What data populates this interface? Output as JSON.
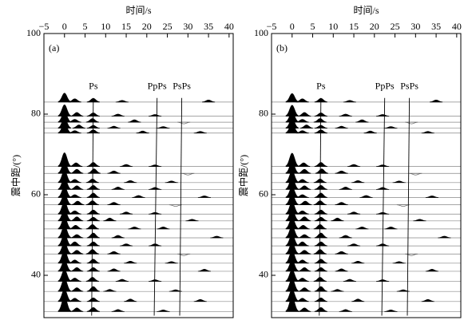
{
  "chart_data": [
    {
      "type": "wiggle",
      "panel_label": "(a)",
      "title": "时间/s",
      "y_label": "震中距/(°)",
      "xlim": [
        -5,
        41
      ],
      "ylim": [
        29.5,
        100
      ],
      "xticks": [
        {
          "value": -5,
          "label": "−5"
        },
        0,
        5,
        10,
        15,
        20,
        25,
        30,
        35,
        40
      ],
      "yticks": [
        40,
        60,
        80,
        100
      ],
      "phases": [
        {
          "label": "Ps",
          "t": [
            7,
            6.6
          ]
        },
        {
          "label": "PpPs",
          "t": [
            22.5,
            21.8
          ]
        },
        {
          "label": "PsPs",
          "t": [
            28.5,
            28
          ]
        }
      ],
      "phase_distance": [
        84,
        30
      ],
      "traces": [
        {
          "distance": 83,
          "t": [
            0,
            2.5,
            7,
            14,
            35
          ],
          "amp": [
            2.2,
            0.8,
            0.9,
            0.4,
            0.5
          ]
        },
        {
          "distance": 79.5,
          "t": [
            0,
            3,
            7,
            13,
            22
          ],
          "amp": [
            2.8,
            0.9,
            0.8,
            0.5,
            0.4
          ]
        },
        {
          "distance": 78,
          "t": [
            0,
            2.5,
            6.8,
            17,
            29
          ],
          "amp": [
            2.6,
            0.7,
            0.9,
            0.6,
            -0.4
          ]
        },
        {
          "distance": 76.5,
          "t": [
            0,
            3.5,
            7,
            12,
            24
          ],
          "amp": [
            2.5,
            0.8,
            0.7,
            0.5,
            0.4
          ]
        },
        {
          "distance": 75.3,
          "t": [
            0,
            2.5,
            7,
            19,
            33
          ],
          "amp": [
            2.4,
            0.6,
            0.8,
            0.5,
            0.4
          ]
        },
        {
          "distance": 67,
          "t": [
            0,
            2.8,
            7,
            15,
            22
          ],
          "amp": [
            3.4,
            0.9,
            1.0,
            0.5,
            0.4
          ]
        },
        {
          "distance": 65.3,
          "t": [
            0,
            3,
            7.2,
            12,
            30
          ],
          "amp": [
            2.8,
            1.0,
            1.1,
            0.6,
            -0.4
          ]
        },
        {
          "distance": 63,
          "t": [
            0,
            2.5,
            6.8,
            16,
            26
          ],
          "amp": [
            3.0,
            0.8,
            0.9,
            0.5,
            0.4
          ]
        },
        {
          "distance": 61.3,
          "t": [
            0,
            3,
            7,
            13,
            22
          ],
          "amp": [
            2.9,
            0.9,
            1.0,
            0.6,
            0.5
          ]
        },
        {
          "distance": 59.3,
          "t": [
            0,
            2.5,
            7,
            18,
            34
          ],
          "amp": [
            2.7,
            0.7,
            1.1,
            0.5,
            0.4
          ]
        },
        {
          "distance": 57.5,
          "t": [
            0,
            3.2,
            6.8,
            12,
            27
          ],
          "amp": [
            2.6,
            0.9,
            1.0,
            0.6,
            -0.4
          ]
        },
        {
          "distance": 55.2,
          "t": [
            0,
            2.5,
            7,
            15,
            22
          ],
          "amp": [
            3.1,
            0.8,
            1.0,
            0.5,
            0.4
          ]
        },
        {
          "distance": 53.5,
          "t": [
            0,
            3,
            7,
            11,
            31
          ],
          "amp": [
            2.8,
            1.0,
            0.9,
            0.7,
            0.4
          ]
        },
        {
          "distance": 51.5,
          "t": [
            0,
            2.7,
            6.8,
            17,
            24
          ],
          "amp": [
            2.9,
            0.9,
            1.1,
            0.5,
            0.5
          ]
        },
        {
          "distance": 49.3,
          "t": [
            0,
            3,
            7,
            13,
            37
          ],
          "amp": [
            3.0,
            0.8,
            1.2,
            0.6,
            0.4
          ]
        },
        {
          "distance": 47.3,
          "t": [
            0,
            2.5,
            7,
            15,
            22
          ],
          "amp": [
            2.9,
            1.0,
            1.0,
            0.5,
            0.5
          ]
        },
        {
          "distance": 45.3,
          "t": [
            0,
            3,
            6.8,
            12,
            29
          ],
          "amp": [
            2.8,
            0.9,
            1.1,
            0.6,
            -0.4
          ]
        },
        {
          "distance": 43,
          "t": [
            0,
            2.5,
            7,
            16,
            26
          ],
          "amp": [
            3.2,
            0.8,
            1.0,
            0.5,
            0.4
          ]
        },
        {
          "distance": 41,
          "t": [
            0,
            3,
            7,
            12,
            34
          ],
          "amp": [
            2.7,
            0.9,
            0.9,
            0.6,
            0.5
          ]
        },
        {
          "distance": 38.5,
          "t": [
            0,
            2.5,
            6.8,
            14,
            22
          ],
          "amp": [
            2.9,
            0.8,
            1.0,
            0.5,
            0.4
          ]
        },
        {
          "distance": 36,
          "t": [
            0,
            3,
            7,
            11,
            27
          ],
          "amp": [
            3.3,
            0.9,
            1.2,
            0.5,
            0.4
          ]
        },
        {
          "distance": 33.5,
          "t": [
            0,
            2.5,
            7,
            16,
            33
          ],
          "amp": [
            3.0,
            0.8,
            0.9,
            0.6,
            0.5
          ]
        },
        {
          "distance": 31,
          "t": [
            0,
            3,
            7,
            13,
            24
          ],
          "amp": [
            3.8,
            0.9,
            1.0,
            0.5,
            0.4
          ]
        }
      ]
    },
    {
      "type": "wiggle",
      "panel_label": "(b)",
      "title": "时间/s",
      "y_label": "震中距/(°)",
      "xlim": [
        -5,
        41
      ],
      "ylim": [
        29.5,
        100
      ],
      "xticks": [
        {
          "value": -5,
          "label": "−5"
        },
        0,
        5,
        10,
        15,
        20,
        25,
        30,
        35,
        40
      ],
      "yticks": [
        40,
        60,
        80,
        100
      ],
      "phases": [
        {
          "label": "Ps",
          "t": [
            7,
            6.6
          ]
        },
        {
          "label": "PpPs",
          "t": [
            22.5,
            21.8
          ]
        },
        {
          "label": "PsPs",
          "t": [
            28.5,
            28
          ]
        }
      ],
      "phase_distance": [
        84,
        30
      ],
      "traces": [
        {
          "distance": 83,
          "t": [
            0,
            2.5,
            7,
            14,
            35
          ],
          "amp": [
            2.1,
            0.8,
            0.9,
            0.4,
            0.5
          ]
        },
        {
          "distance": 79.5,
          "t": [
            0,
            3,
            7,
            13,
            22
          ],
          "amp": [
            2.7,
            0.9,
            0.8,
            0.5,
            0.4
          ]
        },
        {
          "distance": 78,
          "t": [
            0,
            2.5,
            6.8,
            17,
            29
          ],
          "amp": [
            2.6,
            0.7,
            0.9,
            0.6,
            -0.4
          ]
        },
        {
          "distance": 76.5,
          "t": [
            0,
            3.5,
            7,
            12,
            24
          ],
          "amp": [
            2.4,
            0.8,
            0.7,
            0.5,
            0.4
          ]
        },
        {
          "distance": 75.3,
          "t": [
            0,
            2.5,
            7,
            19,
            33
          ],
          "amp": [
            2.4,
            0.6,
            0.8,
            0.5,
            0.4
          ]
        },
        {
          "distance": 67,
          "t": [
            0,
            2.8,
            7,
            15,
            22
          ],
          "amp": [
            3.3,
            0.9,
            1.0,
            0.5,
            0.4
          ]
        },
        {
          "distance": 65.3,
          "t": [
            0,
            3,
            7.2,
            12,
            30
          ],
          "amp": [
            2.8,
            1.0,
            1.1,
            0.6,
            -0.4
          ]
        },
        {
          "distance": 63,
          "t": [
            0,
            2.5,
            6.8,
            16,
            26
          ],
          "amp": [
            2.9,
            0.8,
            0.9,
            0.5,
            0.4
          ]
        },
        {
          "distance": 61.3,
          "t": [
            0,
            3,
            7,
            13,
            22
          ],
          "amp": [
            2.9,
            0.9,
            1.0,
            0.6,
            0.5
          ]
        },
        {
          "distance": 59.3,
          "t": [
            0,
            2.5,
            7,
            18,
            34
          ],
          "amp": [
            2.6,
            0.7,
            1.1,
            0.5,
            0.4
          ]
        },
        {
          "distance": 57.5,
          "t": [
            0,
            3.2,
            6.8,
            12,
            27
          ],
          "amp": [
            2.6,
            0.9,
            1.0,
            0.6,
            -0.4
          ]
        },
        {
          "distance": 55.2,
          "t": [
            0,
            2.5,
            7,
            15,
            22
          ],
          "amp": [
            3.0,
            0.8,
            1.0,
            0.5,
            0.4
          ]
        },
        {
          "distance": 53.5,
          "t": [
            0,
            3,
            7,
            11,
            31
          ],
          "amp": [
            2.8,
            1.0,
            0.9,
            0.7,
            0.4
          ]
        },
        {
          "distance": 51.5,
          "t": [
            0,
            2.7,
            6.8,
            17,
            24
          ],
          "amp": [
            2.8,
            0.9,
            1.1,
            0.5,
            0.5
          ]
        },
        {
          "distance": 49.3,
          "t": [
            0,
            3,
            7,
            13,
            37
          ],
          "amp": [
            3.0,
            0.8,
            1.2,
            0.6,
            0.4
          ]
        },
        {
          "distance": 47.3,
          "t": [
            0,
            2.5,
            7,
            15,
            22
          ],
          "amp": [
            2.8,
            1.0,
            1.0,
            0.5,
            0.5
          ]
        },
        {
          "distance": 45.3,
          "t": [
            0,
            3,
            6.8,
            12,
            29
          ],
          "amp": [
            2.8,
            0.9,
            1.1,
            0.6,
            -0.4
          ]
        },
        {
          "distance": 43,
          "t": [
            0,
            2.5,
            7,
            16,
            26
          ],
          "amp": [
            3.1,
            0.8,
            1.0,
            0.5,
            0.4
          ]
        },
        {
          "distance": 41,
          "t": [
            0,
            3,
            7,
            12,
            34
          ],
          "amp": [
            2.7,
            0.9,
            0.9,
            0.6,
            0.5
          ]
        },
        {
          "distance": 38.5,
          "t": [
            0,
            2.5,
            6.8,
            14,
            22
          ],
          "amp": [
            2.9,
            0.8,
            1.0,
            0.5,
            0.4
          ]
        },
        {
          "distance": 36,
          "t": [
            0,
            3,
            7,
            11,
            27
          ],
          "amp": [
            3.2,
            0.9,
            1.2,
            0.5,
            0.4
          ]
        },
        {
          "distance": 33.5,
          "t": [
            0,
            2.5,
            7,
            16,
            33
          ],
          "amp": [
            3.0,
            0.8,
            0.9,
            0.6,
            0.5
          ]
        },
        {
          "distance": 31,
          "t": [
            0,
            3,
            7,
            13,
            24
          ],
          "amp": [
            3.7,
            0.9,
            1.0,
            0.5,
            0.4
          ]
        }
      ]
    }
  ]
}
